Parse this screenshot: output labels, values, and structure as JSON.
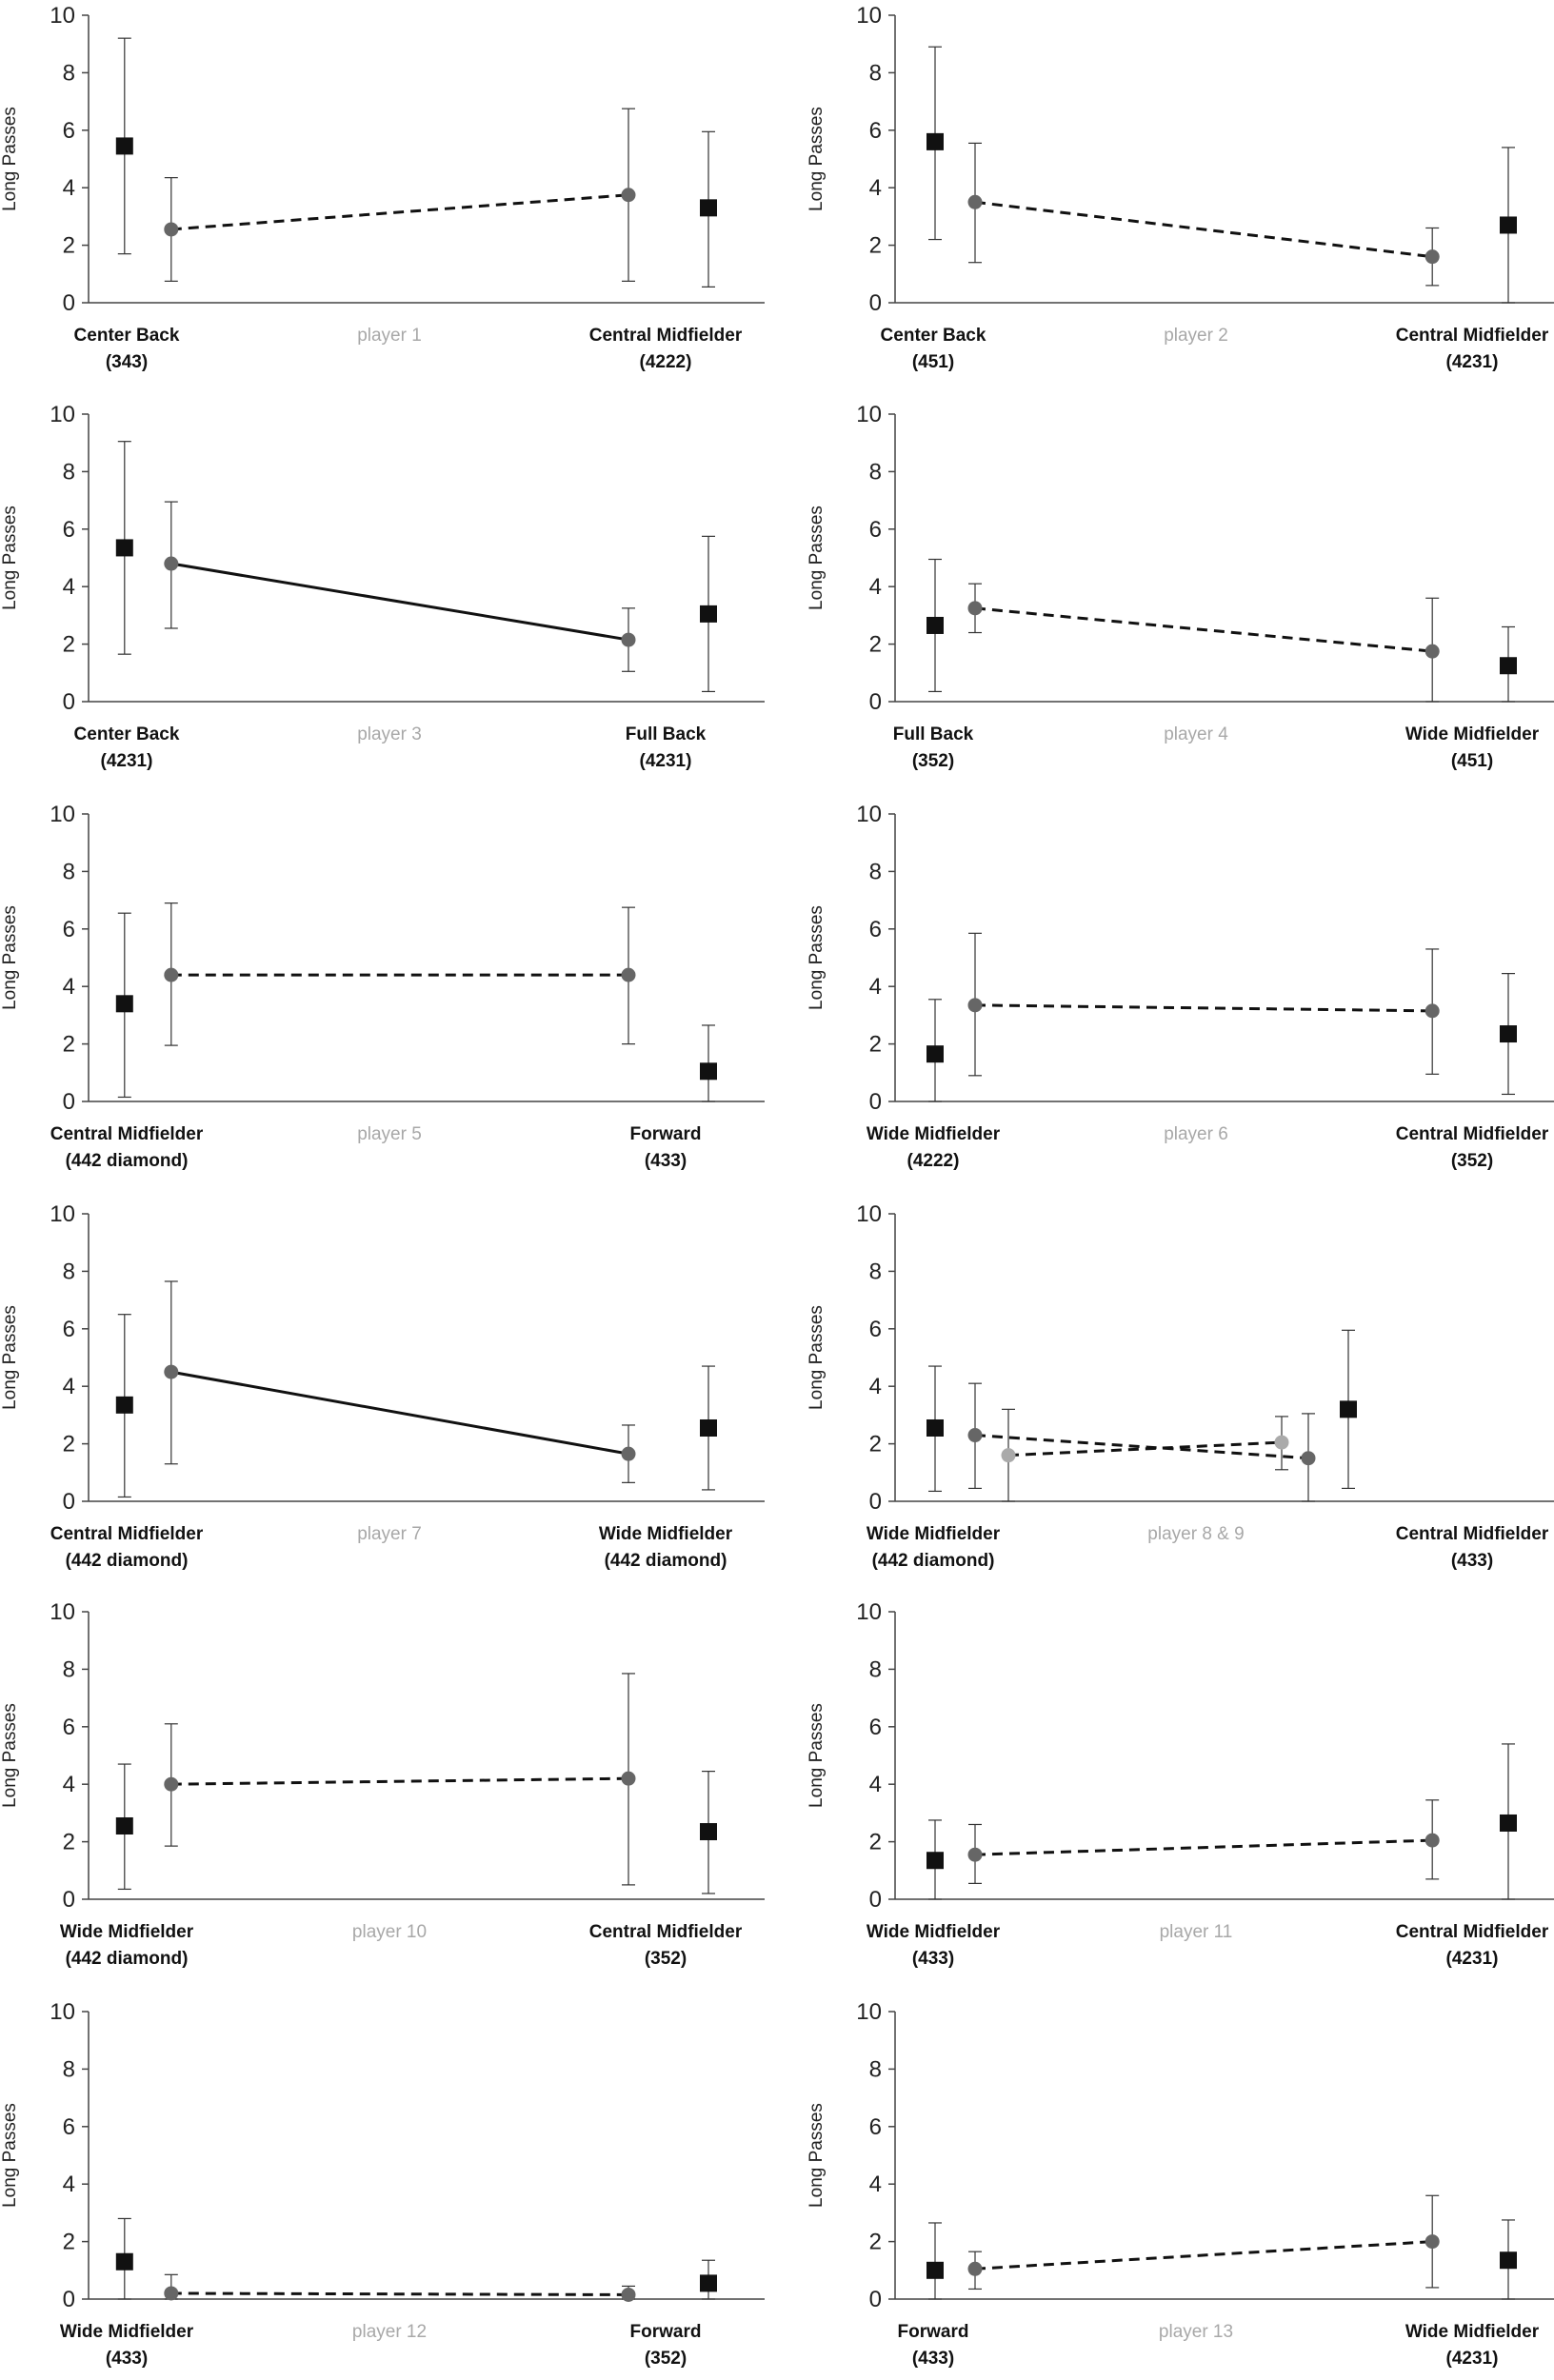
{
  "figure": {
    "colors": {
      "square": "#111111",
      "circle": "#666666",
      "circle_light": "#aaaaaa",
      "axis": "#444444",
      "player_label": "#a8a8a8"
    }
  },
  "chart_data": [
    {
      "type": "scatter",
      "title": "player 1",
      "ylabel": "Long Passes",
      "ylim": [
        0,
        10
      ],
      "yticks": [
        0,
        2,
        4,
        6,
        8,
        10
      ],
      "positions": [
        {
          "name": "Center Back",
          "formation": "(343)"
        },
        {
          "name": "Central Midfielder",
          "formation": "(4222)"
        }
      ],
      "series": [
        {
          "marker": "square",
          "color": "#111111",
          "x": [
            0.27,
            4.65
          ],
          "values": [
            5.45,
            3.3
          ],
          "errors": [
            [
              1.7,
              9.2
            ],
            [
              0.55,
              5.95
            ]
          ]
        },
        {
          "marker": "circle",
          "color": "#666666",
          "line": "dashed",
          "x": [
            0.62,
            4.05
          ],
          "values": [
            2.55,
            3.75
          ],
          "errors": [
            [
              0.75,
              4.35
            ],
            [
              0.75,
              6.75
            ]
          ]
        }
      ]
    },
    {
      "type": "scatter",
      "title": "player 2",
      "ylabel": "Long Passes",
      "ylim": [
        0,
        10
      ],
      "yticks": [
        0,
        2,
        4,
        6,
        8,
        10
      ],
      "positions": [
        {
          "name": "Center Back",
          "formation": "(451)"
        },
        {
          "name": "Central Midfielder",
          "formation": "(4231)"
        }
      ],
      "series": [
        {
          "marker": "square",
          "color": "#111111",
          "x": [
            0.3,
            4.6
          ],
          "values": [
            5.6,
            2.7
          ],
          "errors": [
            [
              2.2,
              8.9
            ],
            [
              0.0,
              5.4
            ]
          ]
        },
        {
          "marker": "circle",
          "color": "#666666",
          "line": "dashed",
          "x": [
            0.6,
            4.03
          ],
          "values": [
            3.5,
            1.6
          ],
          "errors": [
            [
              1.4,
              5.55
            ],
            [
              0.6,
              2.6
            ]
          ]
        }
      ]
    },
    {
      "type": "scatter",
      "title": "player 3",
      "ylabel": "Long Passes",
      "ylim": [
        0,
        10
      ],
      "yticks": [
        0,
        2,
        4,
        6,
        8,
        10
      ],
      "positions": [
        {
          "name": "Center Back",
          "formation": "(4231)"
        },
        {
          "name": "Full Back",
          "formation": "(4231)"
        }
      ],
      "series": [
        {
          "marker": "square",
          "color": "#111111",
          "x": [
            0.27,
            4.65
          ],
          "values": [
            5.35,
            3.05
          ],
          "errors": [
            [
              1.65,
              9.05
            ],
            [
              0.35,
              5.75
            ]
          ]
        },
        {
          "marker": "circle",
          "color": "#666666",
          "line": "solid",
          "x": [
            0.62,
            4.05
          ],
          "values": [
            4.8,
            2.15
          ],
          "errors": [
            [
              2.55,
              6.95
            ],
            [
              1.05,
              3.25
            ]
          ]
        }
      ]
    },
    {
      "type": "scatter",
      "title": "player 4",
      "ylabel": "Long Passes",
      "ylim": [
        0,
        10
      ],
      "yticks": [
        0,
        2,
        4,
        6,
        8,
        10
      ],
      "positions": [
        {
          "name": "Full Back",
          "formation": "(352)"
        },
        {
          "name": "Wide Midfielder",
          "formation": "(451)"
        }
      ],
      "series": [
        {
          "marker": "square",
          "color": "#111111",
          "x": [
            0.3,
            4.6
          ],
          "values": [
            2.65,
            1.25
          ],
          "errors": [
            [
              0.35,
              4.95
            ],
            [
              0.0,
              2.6
            ]
          ]
        },
        {
          "marker": "circle",
          "color": "#666666",
          "line": "dashed",
          "x": [
            0.6,
            4.03
          ],
          "values": [
            3.25,
            1.75
          ],
          "errors": [
            [
              2.4,
              4.1
            ],
            [
              0.0,
              3.6
            ]
          ]
        }
      ]
    },
    {
      "type": "scatter",
      "title": "player 5",
      "ylabel": "Long Passes",
      "ylim": [
        0,
        10
      ],
      "yticks": [
        0,
        2,
        4,
        6,
        8,
        10
      ],
      "positions": [
        {
          "name": "Central Midfielder",
          "formation": "(442 diamond)"
        },
        {
          "name": "Forward",
          "formation": "(433)"
        }
      ],
      "series": [
        {
          "marker": "square",
          "color": "#111111",
          "x": [
            0.27,
            4.65
          ],
          "values": [
            3.4,
            1.05
          ],
          "errors": [
            [
              0.15,
              6.55
            ],
            [
              0.0,
              2.65
            ]
          ]
        },
        {
          "marker": "circle",
          "color": "#666666",
          "line": "dashed",
          "x": [
            0.62,
            4.05
          ],
          "values": [
            4.4,
            4.4
          ],
          "errors": [
            [
              1.95,
              6.9
            ],
            [
              2.0,
              6.75
            ]
          ]
        }
      ]
    },
    {
      "type": "scatter",
      "title": "player 6",
      "ylabel": "Long Passes",
      "ylim": [
        0,
        10
      ],
      "yticks": [
        0,
        2,
        4,
        6,
        8,
        10
      ],
      "positions": [
        {
          "name": "Wide Midfielder",
          "formation": "(4222)"
        },
        {
          "name": "Central Midfielder",
          "formation": "(352)"
        }
      ],
      "series": [
        {
          "marker": "square",
          "color": "#111111",
          "x": [
            0.3,
            4.6
          ],
          "values": [
            1.65,
            2.35
          ],
          "errors": [
            [
              0.0,
              3.55
            ],
            [
              0.25,
              4.45
            ]
          ]
        },
        {
          "marker": "circle",
          "color": "#666666",
          "line": "dashed",
          "x": [
            0.6,
            4.03
          ],
          "values": [
            3.35,
            3.15
          ],
          "errors": [
            [
              0.9,
              5.85
            ],
            [
              0.95,
              5.3
            ]
          ]
        }
      ]
    },
    {
      "type": "scatter",
      "title": "player 7",
      "ylabel": "Long Passes",
      "ylim": [
        0,
        10
      ],
      "yticks": [
        0,
        2,
        4,
        6,
        8,
        10
      ],
      "positions": [
        {
          "name": "Central Midfielder",
          "formation": "(442 diamond)"
        },
        {
          "name": "Wide Midfielder",
          "formation": "(442 diamond)"
        }
      ],
      "series": [
        {
          "marker": "square",
          "color": "#111111",
          "x": [
            0.27,
            4.65
          ],
          "values": [
            3.35,
            2.55
          ],
          "errors": [
            [
              0.15,
              6.5
            ],
            [
              0.4,
              4.7
            ]
          ]
        },
        {
          "marker": "circle",
          "color": "#666666",
          "line": "solid",
          "x": [
            0.62,
            4.05
          ],
          "values": [
            4.5,
            1.65
          ],
          "errors": [
            [
              1.3,
              7.65
            ],
            [
              0.65,
              2.65
            ]
          ]
        }
      ]
    },
    {
      "type": "scatter",
      "title": "player 8 & 9",
      "ylabel": "Long Passes",
      "ylim": [
        0,
        10
      ],
      "yticks": [
        0,
        2,
        4,
        6,
        8,
        10
      ],
      "positions": [
        {
          "name": "Wide Midfielder",
          "formation": "(442 diamond)"
        },
        {
          "name": "Central Midfielder",
          "formation": "(433)"
        }
      ],
      "series": [
        {
          "marker": "square",
          "color": "#111111",
          "x": [
            0.3,
            3.4
          ],
          "values": [
            2.55,
            3.2
          ],
          "errors": [
            [
              0.35,
              4.7
            ],
            [
              0.45,
              5.95
            ]
          ]
        },
        {
          "marker": "circle",
          "color": "#666666",
          "line": "dashed",
          "x": [
            0.6,
            3.1
          ],
          "values": [
            2.3,
            1.5
          ],
          "errors": [
            [
              0.45,
              4.1
            ],
            [
              0.0,
              3.05
            ]
          ]
        },
        {
          "marker": "circle",
          "color": "#aaaaaa",
          "line": "dashed",
          "x": [
            0.85,
            2.9
          ],
          "values": [
            1.6,
            2.05
          ],
          "errors": [
            [
              0.0,
              3.2
            ],
            [
              1.1,
              2.95
            ]
          ]
        }
      ]
    },
    {
      "type": "scatter",
      "title": "player 10",
      "ylabel": "Long Passes",
      "ylim": [
        0,
        10
      ],
      "yticks": [
        0,
        2,
        4,
        6,
        8,
        10
      ],
      "positions": [
        {
          "name": "Wide Midfielder",
          "formation": "(442 diamond)"
        },
        {
          "name": "Central Midfielder",
          "formation": "(352)"
        }
      ],
      "series": [
        {
          "marker": "square",
          "color": "#111111",
          "x": [
            0.27,
            4.65
          ],
          "values": [
            2.55,
            2.35
          ],
          "errors": [
            [
              0.35,
              4.7
            ],
            [
              0.2,
              4.45
            ]
          ]
        },
        {
          "marker": "circle",
          "color": "#666666",
          "line": "dashed",
          "x": [
            0.62,
            4.05
          ],
          "values": [
            4.0,
            4.2
          ],
          "errors": [
            [
              1.85,
              6.1
            ],
            [
              0.5,
              7.85
            ]
          ]
        }
      ]
    },
    {
      "type": "scatter",
      "title": "player 11",
      "ylabel": "Long Passes",
      "ylim": [
        0,
        10
      ],
      "yticks": [
        0,
        2,
        4,
        6,
        8,
        10
      ],
      "positions": [
        {
          "name": "Wide Midfielder",
          "formation": "(433)"
        },
        {
          "name": "Central Midfielder",
          "formation": "(4231)"
        }
      ],
      "series": [
        {
          "marker": "square",
          "color": "#111111",
          "x": [
            0.3,
            4.6
          ],
          "values": [
            1.35,
            2.65
          ],
          "errors": [
            [
              0.0,
              2.75
            ],
            [
              0.0,
              5.4
            ]
          ]
        },
        {
          "marker": "circle",
          "color": "#666666",
          "line": "dashed",
          "x": [
            0.6,
            4.03
          ],
          "values": [
            1.55,
            2.05
          ],
          "errors": [
            [
              0.55,
              2.6
            ],
            [
              0.7,
              3.45
            ]
          ]
        }
      ]
    },
    {
      "type": "scatter",
      "title": "player 12",
      "ylabel": "Long Passes",
      "ylim": [
        0,
        10
      ],
      "yticks": [
        0,
        2,
        4,
        6,
        8,
        10
      ],
      "positions": [
        {
          "name": "Wide Midfielder",
          "formation": "(433)"
        },
        {
          "name": "Forward",
          "formation": "(352)"
        }
      ],
      "series": [
        {
          "marker": "square",
          "color": "#111111",
          "x": [
            0.27,
            4.65
          ],
          "values": [
            1.3,
            0.55
          ],
          "errors": [
            [
              0.0,
              2.8
            ],
            [
              0.0,
              1.35
            ]
          ]
        },
        {
          "marker": "circle",
          "color": "#666666",
          "line": "dashed",
          "x": [
            0.62,
            4.05
          ],
          "values": [
            0.2,
            0.15
          ],
          "errors": [
            [
              0.0,
              0.85
            ],
            [
              0.0,
              0.45
            ]
          ]
        }
      ]
    },
    {
      "type": "scatter",
      "title": "player 13",
      "ylabel": "Long Passes",
      "ylim": [
        0,
        10
      ],
      "yticks": [
        0,
        2,
        4,
        6,
        8,
        10
      ],
      "positions": [
        {
          "name": "Forward",
          "formation": "(433)"
        },
        {
          "name": "Wide Midfielder",
          "formation": "(4231)"
        }
      ],
      "series": [
        {
          "marker": "square",
          "color": "#111111",
          "x": [
            0.3,
            4.6
          ],
          "values": [
            1.0,
            1.35
          ],
          "errors": [
            [
              0.0,
              2.65
            ],
            [
              0.0,
              2.75
            ]
          ]
        },
        {
          "marker": "circle",
          "color": "#666666",
          "line": "dashed",
          "x": [
            0.6,
            4.03
          ],
          "values": [
            1.05,
            2.0
          ],
          "errors": [
            [
              0.35,
              1.65
            ],
            [
              0.4,
              3.6
            ]
          ]
        }
      ]
    }
  ]
}
